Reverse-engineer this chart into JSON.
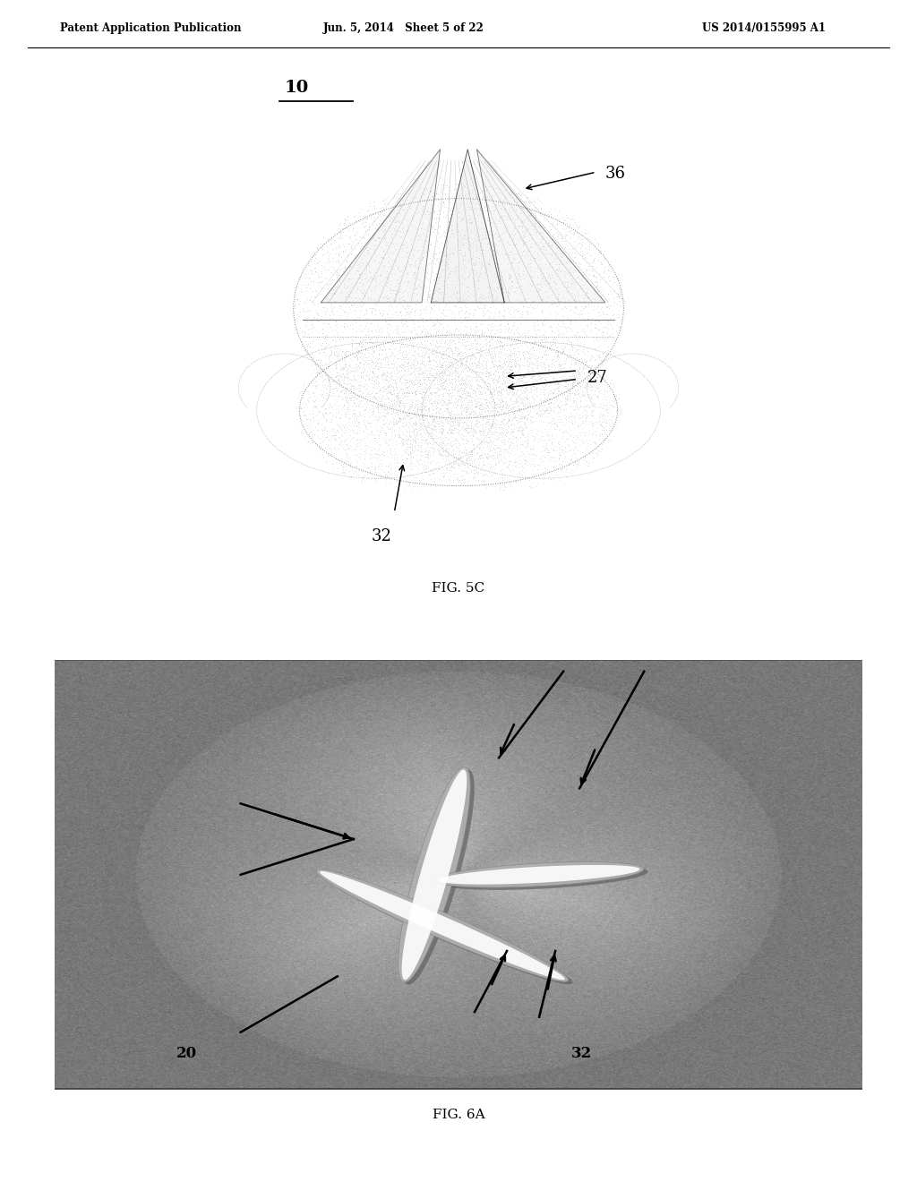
{
  "header_left": "Patent Application Publication",
  "header_center": "Jun. 5, 2014   Sheet 5 of 22",
  "header_right": "US 2014/0155995 A1",
  "fig5c_label": "FIG. 5C",
  "fig6a_label": "FIG. 6A",
  "label_10": "10",
  "label_36": "36",
  "label_27": "27",
  "label_32_5c": "32",
  "label_20": "20",
  "label_32_6a": "32",
  "bg_color": "#ffffff",
  "page_width": 10.24,
  "page_height": 13.2
}
